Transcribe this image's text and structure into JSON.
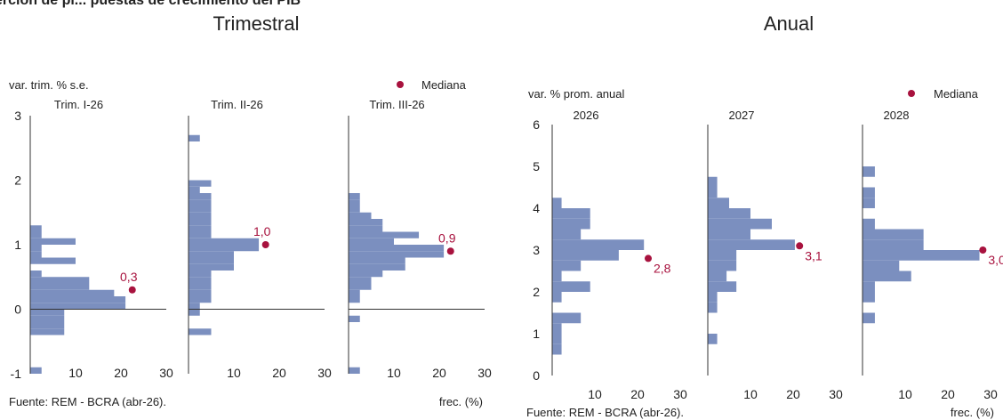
{
  "header": {
    "cut_title": "ercion de pl... puestas de crecimiento del PIB",
    "left_heading": "Trimestral",
    "right_heading": "Anual"
  },
  "colors": {
    "bar": "#7b8fbf",
    "median": "#a8123e",
    "axis": "#333333",
    "text": "#222222"
  },
  "legend": {
    "label": "Mediana",
    "position": "top-right"
  },
  "left": {
    "unit": "var. trim. % s.e.",
    "source": "Fuente: REM - BCRA (abr-26).",
    "freq_label": "frec. (%)",
    "x_ticks": [
      "10",
      "20",
      "30"
    ],
    "y_ticks": [
      "3",
      "2",
      "1",
      "0",
      "-1"
    ]
  },
  "right": {
    "unit": "var. % prom. anual",
    "source": "Fuente: REM - BCRA (abr-26).",
    "freq_label": "frec. (%)",
    "x_ticks": [
      "10",
      "20",
      "30"
    ],
    "y_ticks": [
      "6",
      "5",
      "4",
      "3",
      "2",
      "1",
      "0"
    ]
  },
  "chart_data": [
    {
      "type": "bar",
      "orientation": "horizontal histogram",
      "group": "Trimestral",
      "ylabel": "var. trim. % s.e.",
      "xlabel": "frec. (%)",
      "ylim": [
        -1,
        3
      ],
      "xlim": [
        0,
        30
      ],
      "bin_width": 0.1,
      "panels": [
        {
          "title": "Trim. I-26",
          "bins": [
            [
              -1.0,
              2.5
            ],
            [
              -0.4,
              7.5
            ],
            [
              -0.3,
              7.5
            ],
            [
              -0.2,
              7.5
            ],
            [
              -0.1,
              7.5
            ],
            [
              0.0,
              21
            ],
            [
              0.1,
              21
            ],
            [
              0.2,
              18.5
            ],
            [
              0.3,
              13
            ],
            [
              0.4,
              13
            ],
            [
              0.5,
              2.5
            ],
            [
              0.7,
              10
            ],
            [
              0.8,
              2.5
            ],
            [
              0.9,
              2.5
            ],
            [
              1.0,
              10
            ],
            [
              1.1,
              2.5
            ],
            [
              1.2,
              2.5
            ]
          ],
          "median": 0.3,
          "median_label": "0,3",
          "median_freq": 22.5
        },
        {
          "title": "Trim. II-26",
          "bins": [
            [
              -0.4,
              5
            ],
            [
              -0.1,
              2.5
            ],
            [
              0.0,
              2.5
            ],
            [
              0.1,
              5
            ],
            [
              0.2,
              5
            ],
            [
              0.3,
              5
            ],
            [
              0.4,
              5
            ],
            [
              0.5,
              5
            ],
            [
              0.6,
              10
            ],
            [
              0.7,
              10
            ],
            [
              0.8,
              10
            ],
            [
              0.9,
              15.5
            ],
            [
              1.0,
              15.5
            ],
            [
              1.1,
              5
            ],
            [
              1.2,
              5
            ],
            [
              1.3,
              5
            ],
            [
              1.4,
              5
            ],
            [
              1.5,
              5
            ],
            [
              1.6,
              5
            ],
            [
              1.7,
              5
            ],
            [
              1.8,
              2.5
            ],
            [
              1.9,
              5
            ],
            [
              2.6,
              2.5
            ]
          ],
          "median": 1.0,
          "median_label": "1,0",
          "median_freq": 17
        },
        {
          "title": "Trim. III-26",
          "bins": [
            [
              -1.0,
              2.5
            ],
            [
              -0.2,
              2.5
            ],
            [
              0.1,
              2.5
            ],
            [
              0.2,
              2.5
            ],
            [
              0.3,
              5
            ],
            [
              0.4,
              5
            ],
            [
              0.5,
              7.5
            ],
            [
              0.6,
              12.5
            ],
            [
              0.7,
              12.5
            ],
            [
              0.8,
              21
            ],
            [
              0.9,
              21
            ],
            [
              1.0,
              10
            ],
            [
              1.1,
              15.5
            ],
            [
              1.2,
              7.5
            ],
            [
              1.3,
              7.5
            ],
            [
              1.4,
              5
            ],
            [
              1.5,
              2.5
            ],
            [
              1.6,
              2.5
            ],
            [
              1.7,
              2.5
            ]
          ],
          "median": 0.9,
          "median_label": "0,9",
          "median_freq": 22.5
        }
      ]
    },
    {
      "type": "bar",
      "orientation": "horizontal histogram",
      "group": "Anual",
      "ylabel": "var. % prom. anual",
      "xlabel": "frec. (%)",
      "ylim": [
        0,
        6
      ],
      "xlim": [
        0,
        30
      ],
      "bin_width": 0.25,
      "panels": [
        {
          "title": "2026",
          "bins": [
            [
              0.5,
              2.2
            ],
            [
              0.75,
              2.2
            ],
            [
              1.0,
              2.2
            ],
            [
              1.25,
              6.7
            ],
            [
              1.75,
              2.2
            ],
            [
              2.0,
              8.9
            ],
            [
              2.25,
              2.2
            ],
            [
              2.5,
              6.7
            ],
            [
              2.75,
              15.6
            ],
            [
              3.0,
              21.5
            ],
            [
              3.25,
              6.7
            ],
            [
              3.5,
              8.9
            ],
            [
              3.75,
              8.9
            ],
            [
              4.0,
              2.2
            ]
          ],
          "median": 2.8,
          "median_label": "2,8",
          "median_freq": 22.5
        },
        {
          "title": "2027",
          "bins": [
            [
              0.75,
              2.2
            ],
            [
              1.5,
              2.2
            ],
            [
              1.75,
              2.2
            ],
            [
              2.0,
              6.7
            ],
            [
              2.25,
              4.4
            ],
            [
              2.5,
              6.7
            ],
            [
              2.75,
              6.7
            ],
            [
              3.0,
              20.4
            ],
            [
              3.25,
              10
            ],
            [
              3.5,
              15
            ],
            [
              3.75,
              10
            ],
            [
              4.0,
              5
            ],
            [
              4.25,
              2.2
            ],
            [
              4.5,
              2.2
            ]
          ],
          "median": 3.1,
          "median_label": "3,1",
          "median_freq": 21.5
        },
        {
          "title": "2028",
          "bins": [
            [
              1.25,
              2.9
            ],
            [
              1.75,
              2.9
            ],
            [
              2.0,
              2.9
            ],
            [
              2.25,
              11.4
            ],
            [
              2.5,
              8.6
            ],
            [
              2.75,
              27.4
            ],
            [
              3.0,
              14.3
            ],
            [
              3.25,
              14.3
            ],
            [
              3.5,
              2.9
            ],
            [
              4.0,
              2.9
            ],
            [
              4.25,
              2.9
            ],
            [
              4.75,
              2.9
            ]
          ],
          "median": 3.0,
          "median_label": "3,0",
          "median_freq": 28.2
        }
      ]
    }
  ]
}
